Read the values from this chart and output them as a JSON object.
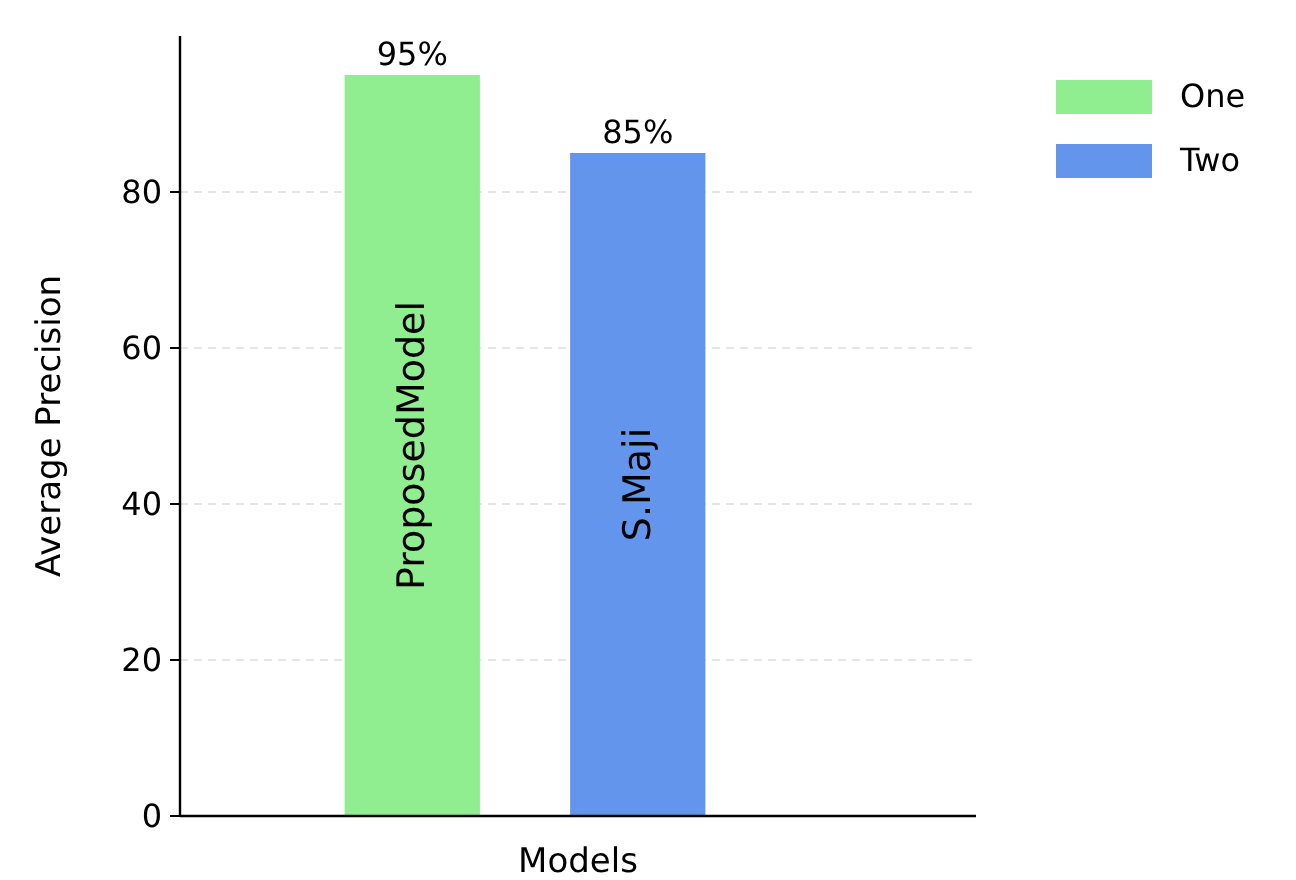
{
  "chart_data": {
    "type": "bar",
    "xlabel": "Models",
    "ylabel": "Average Precision",
    "categories": [
      "ProposedModel",
      "S.Maji"
    ],
    "series": [
      {
        "name": "One",
        "color": "#90ee90",
        "values": [
          95,
          null
        ],
        "value_labels": [
          "95%",
          null
        ]
      },
      {
        "name": "Two",
        "color": "#6495ed",
        "values": [
          null,
          85
        ],
        "value_labels": [
          null,
          "85%"
        ]
      }
    ],
    "ylim": [
      0,
      100
    ],
    "yticks": [
      0,
      20,
      40,
      60,
      80
    ],
    "grid": "y",
    "legend": "top right"
  }
}
